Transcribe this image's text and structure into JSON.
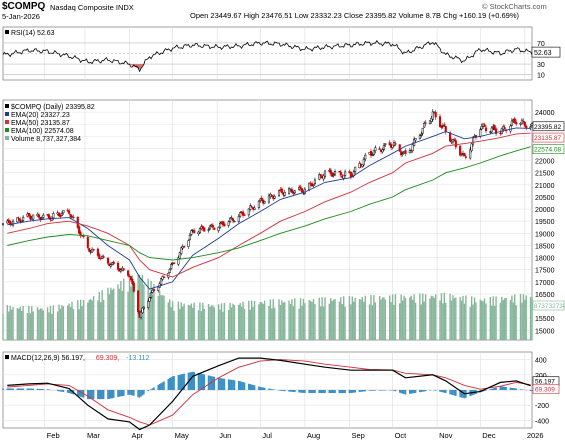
{
  "header": {
    "symbol": "$COMPQ",
    "name": "Nasdaq Composite INDX",
    "date": "5-Jan-2026",
    "ohlc": "Open 23449.67  High 23476.51  Low 23332.23  Close 23395.82  Volume 8.7B  Chg +160.19 (+0.69%)",
    "watermark": "© StockCharts.com"
  },
  "colors": {
    "price_up": "#000000",
    "price_down": "#cc0000",
    "ema20": "#1f3a93",
    "ema50": "#d0303a",
    "ema100": "#1e8a1e",
    "volume": "#86b59a",
    "macd": "#000000",
    "signal": "#d0303a",
    "histogram": "#3c8fc6",
    "rsi": "#000000"
  },
  "rsi_panel": {
    "label": "RSI(14) 52.63",
    "value_tag": "52.63",
    "levels": [
      "70",
      "50",
      "30",
      "10"
    ]
  },
  "price_panel": {
    "legend": [
      {
        "key": "title",
        "text": "$COMPQ (Daily) 23395.82"
      },
      {
        "key": "ema20",
        "text": "EMA(20) 23327.23"
      },
      {
        "key": "ema50",
        "text": "EMA(50) 23135.87"
      },
      {
        "key": "ema100",
        "text": "EMA(100) 22574.08"
      },
      {
        "key": "volume",
        "text": "Volume 8,737,327,384"
      }
    ],
    "tags": [
      {
        "key": "close",
        "text": "23395.82"
      },
      {
        "key": "ema50",
        "text": "23135.87"
      },
      {
        "key": "ema100",
        "text": "22574.08"
      },
      {
        "key": "volume",
        "text": "8737327384"
      }
    ],
    "y_ticks": [
      "24000",
      "23500",
      "23000",
      "22500",
      "22000",
      "21500",
      "21000",
      "20500",
      "20000",
      "19500",
      "19000",
      "18500",
      "18000",
      "17500",
      "17000",
      "16500",
      "16000",
      "15500",
      "15000"
    ]
  },
  "macd_panel": {
    "label": "MACD(12,26,9) 56.197, 69.309, -13.112",
    "label_parts": [
      "MACD(12,26,9) 56.197,",
      "69.309,",
      "-13.112"
    ],
    "tags": [
      "56.197",
      "69.309"
    ],
    "y_ticks": [
      "400",
      "200",
      "-200",
      "-400"
    ]
  },
  "x_axis": {
    "months": [
      "Feb",
      "Mar",
      "Apr",
      "May",
      "Jun",
      "Jul",
      "Aug",
      "Sep",
      "Oct",
      "Nov",
      "Dec",
      "2026"
    ]
  },
  "chart_data": [
    {
      "type": "line",
      "panel": "RSI",
      "title": "RSI(14) 52.63",
      "ylim": [
        0,
        100
      ],
      "levels": [
        70,
        50,
        30,
        10
      ],
      "x": [
        "2025-01-06",
        "2025-01-21",
        "2025-02-03",
        "2025-02-18",
        "2025-03-03",
        "2025-03-17",
        "2025-04-01",
        "2025-04-08",
        "2025-04-15",
        "2025-05-01",
        "2025-05-15",
        "2025-06-02",
        "2025-06-16",
        "2025-07-01",
        "2025-07-15",
        "2025-08-01",
        "2025-08-15",
        "2025-09-02",
        "2025-09-15",
        "2025-10-01",
        "2025-10-10",
        "2025-10-29",
        "2025-11-07",
        "2025-11-20",
        "2025-12-01",
        "2025-12-15",
        "2025-12-26",
        "2026-01-05"
      ],
      "series": [
        {
          "name": "RSI(14)",
          "values": [
            48,
            56,
            54,
            45,
            34,
            38,
            30,
            20,
            44,
            60,
            66,
            62,
            64,
            70,
            68,
            58,
            62,
            66,
            70,
            68,
            50,
            72,
            48,
            36,
            58,
            50,
            58,
            52.63
          ]
        }
      ]
    },
    {
      "type": "candlestick",
      "panel": "Price",
      "title": "$COMPQ (Daily) 23395.82",
      "ylim": [
        14600,
        24500
      ],
      "x": [
        "2025-01-06",
        "2025-01-21",
        "2025-02-03",
        "2025-02-18",
        "2025-03-03",
        "2025-03-17",
        "2025-04-01",
        "2025-04-08",
        "2025-04-15",
        "2025-05-01",
        "2025-05-15",
        "2025-06-02",
        "2025-06-16",
        "2025-07-01",
        "2025-07-15",
        "2025-08-01",
        "2025-08-15",
        "2025-09-02",
        "2025-09-15",
        "2025-10-01",
        "2025-10-10",
        "2025-10-29",
        "2025-11-07",
        "2025-11-20",
        "2025-12-01",
        "2025-12-15",
        "2025-12-26",
        "2026-01-05"
      ],
      "series": [
        {
          "name": "Close",
          "values": [
            19400,
            19700,
            19650,
            19900,
            18400,
            17800,
            17300,
            15600,
            16400,
            17700,
            19100,
            19300,
            19700,
            20300,
            20700,
            20800,
            21500,
            21400,
            22300,
            22700,
            22200,
            23950,
            23200,
            22100,
            23400,
            23200,
            23650,
            23395.82
          ]
        },
        {
          "name": "EMA(20)",
          "values": [
            19350,
            19500,
            19600,
            19650,
            19200,
            18500,
            17900,
            17200,
            16700,
            17000,
            18100,
            18800,
            19400,
            19900,
            20400,
            20700,
            21100,
            21300,
            21800,
            22300,
            22600,
            23000,
            23200,
            22900,
            23000,
            23200,
            23350,
            23327.23
          ]
        },
        {
          "name": "EMA(50)",
          "values": [
            19000,
            19200,
            19400,
            19500,
            19300,
            19000,
            18500,
            17900,
            17500,
            17200,
            17600,
            18000,
            18500,
            19000,
            19500,
            19900,
            20300,
            20700,
            21100,
            21500,
            21900,
            22300,
            22600,
            22700,
            22800,
            22950,
            23100,
            23135.87
          ]
        },
        {
          "name": "EMA(100)",
          "values": [
            18500,
            18700,
            18850,
            18950,
            18900,
            18700,
            18500,
            18200,
            18000,
            17900,
            18000,
            18200,
            18400,
            18700,
            19000,
            19300,
            19600,
            19900,
            20200,
            20500,
            20800,
            21200,
            21500,
            21700,
            21900,
            22200,
            22400,
            22574.08
          ]
        }
      ]
    },
    {
      "type": "bar",
      "panel": "Volume",
      "title": "Volume 8,737,327,384",
      "x": [
        "2025-01-06",
        "2025-02-03",
        "2025-03-03",
        "2025-04-08",
        "2025-05-01",
        "2025-06-02",
        "2025-07-01",
        "2025-08-01",
        "2025-09-02",
        "2025-10-01",
        "2025-11-07",
        "2025-12-01",
        "2026-01-05"
      ],
      "series": [
        {
          "name": "Volume",
          "values": [
            6500000000,
            6200000000,
            7800000000,
            13000000000,
            7200000000,
            6800000000,
            7500000000,
            7800000000,
            8200000000,
            8500000000,
            8800000000,
            7900000000,
            8737327384
          ]
        }
      ]
    },
    {
      "type": "line",
      "panel": "MACD",
      "title": "MACD(12,26,9) 56.197, 69.309, -13.112",
      "ylim": [
        -500,
        500
      ],
      "x": [
        "2025-01-06",
        "2025-01-21",
        "2025-02-03",
        "2025-02-18",
        "2025-03-03",
        "2025-03-17",
        "2025-04-01",
        "2025-04-08",
        "2025-04-15",
        "2025-05-01",
        "2025-05-15",
        "2025-06-02",
        "2025-06-16",
        "2025-07-01",
        "2025-07-15",
        "2025-08-01",
        "2025-08-15",
        "2025-09-02",
        "2025-09-15",
        "2025-10-01",
        "2025-10-10",
        "2025-10-29",
        "2025-11-07",
        "2025-11-20",
        "2025-12-01",
        "2025-12-15",
        "2025-12-26",
        "2026-01-05"
      ],
      "series": [
        {
          "name": "MACD",
          "values": [
            60,
            80,
            90,
            20,
            -200,
            -380,
            -420,
            -520,
            -460,
            -150,
            180,
            320,
            420,
            420,
            390,
            340,
            300,
            260,
            260,
            260,
            160,
            200,
            120,
            -50,
            -20,
            100,
            120,
            56.197
          ]
        },
        {
          "name": "Signal",
          "values": [
            40,
            60,
            80,
            60,
            -80,
            -260,
            -360,
            -420,
            -460,
            -330,
            -60,
            160,
            300,
            380,
            400,
            380,
            340,
            300,
            270,
            265,
            220,
            200,
            160,
            60,
            10,
            50,
            100,
            69.309
          ]
        },
        {
          "name": "Histogram",
          "values": [
            20,
            20,
            10,
            -40,
            -120,
            -120,
            -60,
            -100,
            0,
            180,
            240,
            160,
            120,
            40,
            -10,
            -40,
            -40,
            -40,
            -10,
            -5,
            -60,
            0,
            -40,
            -110,
            -30,
            50,
            20,
            -13.112
          ]
        }
      ]
    }
  ]
}
